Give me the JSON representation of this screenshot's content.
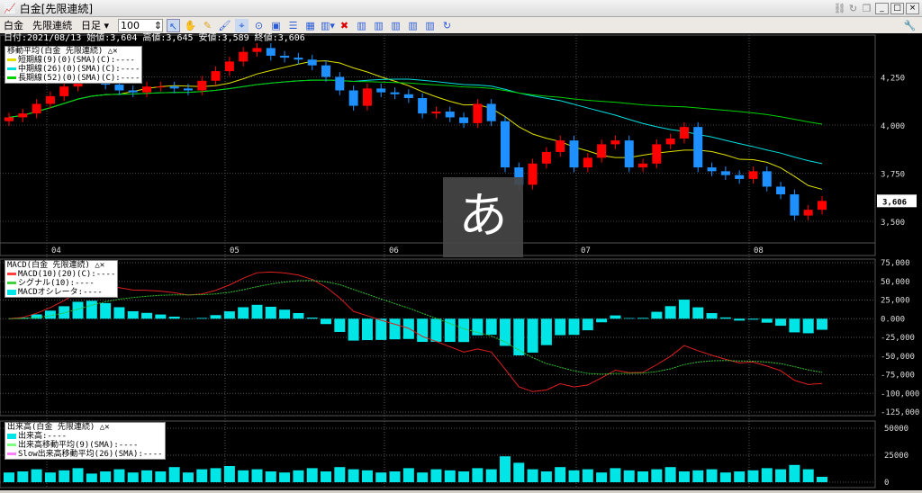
{
  "window": {
    "title": "白金[先限連続]",
    "controls": [
      "_",
      "□",
      "×"
    ]
  },
  "toolbar": {
    "symbol": "白金",
    "contract": "先限連続",
    "period": "日足",
    "count": "100"
  },
  "info": {
    "text": "日付:2021/08/13 始値:3,604 高値:3,645 安値:3,589 終値:3,606"
  },
  "legend_ma": {
    "title": "移動平均(白金 先限連続)",
    "items": [
      {
        "label": "短期線(9)(0)(SMA)(C):----",
        "color": "#e0e000"
      },
      {
        "label": "中期線(26)(0)(SMA)(C):----",
        "color": "#00e0e0"
      },
      {
        "label": "長期線(52)(0)(SMA)(C):----",
        "color": "#00d000"
      }
    ]
  },
  "legend_macd": {
    "title": "MACD(白金 先限連続)",
    "items": [
      {
        "label": "MACD(10)(20)(C):----",
        "color": "#ff4040"
      },
      {
        "label": "シグナル(10):----",
        "color": "#40d040"
      },
      {
        "label": "MACDオシレータ:----",
        "color": "#00e5e5"
      }
    ]
  },
  "legend_vol": {
    "title": "出来高(白金 先限連続)",
    "items": [
      {
        "label": "出来高:----",
        "color": "#00e5e5"
      },
      {
        "label": "出来高移動平均(9)(SMA):----",
        "color": "#80ff80"
      },
      {
        "label": "Slow出来高移動平均(26)(SMA):----",
        "color": "#ff80ff"
      }
    ]
  },
  "ime": "あ",
  "chart_data": [
    {
      "type": "candlestick",
      "title": "",
      "x_ticks": [
        "04",
        "05",
        "06",
        "07",
        "08"
      ],
      "y_ticks": [
        "4,250",
        "4,000",
        "3,750",
        "3,500"
      ],
      "ylim": [
        3400,
        4450
      ],
      "last_price": "3,606",
      "up_color": "#ff0000",
      "down_color": "#1e90ff",
      "close": [
        4040,
        4060,
        4110,
        4150,
        4200,
        4250,
        4240,
        4210,
        4180,
        4170,
        4200,
        4200,
        4190,
        4180,
        4230,
        4280,
        4330,
        4380,
        4400,
        4360,
        4350,
        4340,
        4310,
        4250,
        4180,
        4100,
        4190,
        4170,
        4160,
        4140,
        4060,
        4070,
        4040,
        4010,
        4110,
        4020,
        3780,
        3690,
        3800,
        3860,
        3920,
        3780,
        3830,
        3900,
        3920,
        3780,
        3800,
        3900,
        3930,
        3990,
        3780,
        3760,
        3740,
        3720,
        3760,
        3680,
        3640,
        3530,
        3560,
        3606
      ]
    },
    {
      "type": "macd",
      "y_ticks": [
        "75,000",
        "50,000",
        "25,000",
        "0.000",
        "-25,000",
        "-50,000",
        "-75,000",
        "-100,000",
        "-125,000"
      ],
      "ylim": [
        -125000,
        75000
      ]
    },
    {
      "type": "bar",
      "name": "出来高",
      "y_ticks": [
        "50000",
        "25000",
        "0"
      ],
      "ylim": [
        0,
        50000
      ],
      "values": [
        9000,
        10000,
        12000,
        9000,
        11000,
        13000,
        8000,
        10000,
        12000,
        9000,
        11000,
        10000,
        14000,
        9000,
        12000,
        13000,
        15000,
        11000,
        12000,
        10000,
        9000,
        11000,
        13000,
        10000,
        14000,
        12000,
        11000,
        9000,
        10000,
        13000,
        9000,
        12000,
        11000,
        10000,
        13000,
        12000,
        24000,
        18000,
        12000,
        10000,
        14000,
        11000,
        12000,
        9000,
        13000,
        11000,
        10000,
        12000,
        14000,
        10000,
        11000,
        12000,
        9000,
        10000,
        11000,
        13000,
        12000,
        16000,
        12000,
        5000
      ]
    }
  ]
}
